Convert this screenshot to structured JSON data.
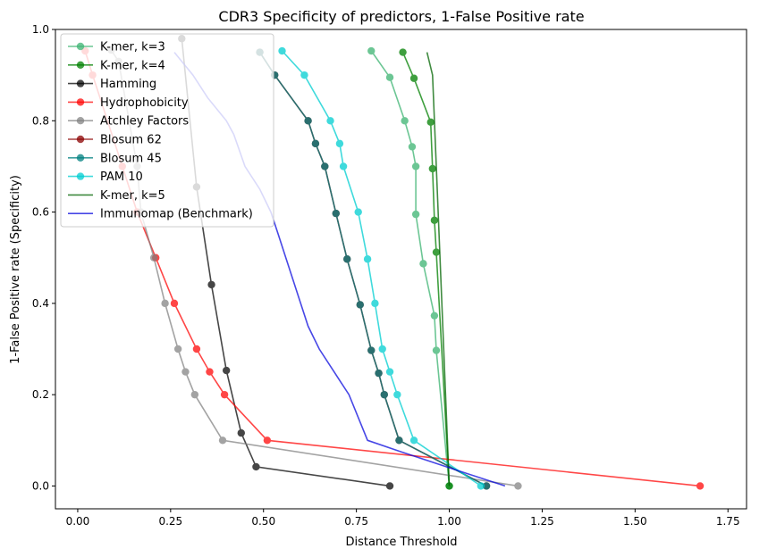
{
  "chart_data": {
    "type": "line",
    "title": "CDR3 Specificity of predictors, 1-False Positive rate",
    "xlabel": "Distance Threshold",
    "ylabel": "1-False Positive rate (Specificity)",
    "xlim": [
      -0.06,
      1.8
    ],
    "ylim": [
      -0.05,
      1.0
    ],
    "xticks": [
      0.0,
      0.25,
      0.5,
      0.75,
      1.0,
      1.25,
      1.5,
      1.75
    ],
    "xtick_labels": [
      "0.00",
      "0.25",
      "0.50",
      "0.75",
      "1.00",
      "1.25",
      "1.50",
      "1.75"
    ],
    "yticks": [
      0.0,
      0.2,
      0.4,
      0.6,
      0.8,
      1.0
    ],
    "ytick_labels": [
      "0.0",
      "0.2",
      "0.4",
      "0.6",
      "0.8",
      "1.0"
    ],
    "grid": false,
    "legend_position": "upper-left",
    "series": [
      {
        "name": "K-mer, k=3",
        "color": "#3cb371",
        "alpha": 0.75,
        "markers": true,
        "x": [
          0.79,
          0.84,
          0.88,
          0.9,
          0.91,
          0.91,
          0.93,
          0.96,
          0.965,
          1.0
        ],
        "y": [
          0.953,
          0.895,
          0.8,
          0.743,
          0.7,
          0.595,
          0.487,
          0.373,
          0.297,
          0.0
        ]
      },
      {
        "name": "K-mer, k=4",
        "color": "#008000",
        "alpha": 0.75,
        "markers": true,
        "x": [
          0.875,
          0.905,
          0.95,
          0.955,
          0.96,
          0.965,
          1.0
        ],
        "y": [
          0.95,
          0.893,
          0.797,
          0.695,
          0.582,
          0.512,
          0.0
        ]
      },
      {
        "name": "Hamming",
        "color": "#000000",
        "alpha": 0.72,
        "markers": true,
        "x": [
          0.28,
          0.32,
          0.36,
          0.4,
          0.44,
          0.48,
          0.84
        ],
        "y": [
          0.98,
          0.655,
          0.441,
          0.253,
          0.116,
          0.042,
          0.0
        ]
      },
      {
        "name": "Hydrophobicity",
        "color": "#ff0000",
        "alpha": 0.72,
        "markers": true,
        "x": [
          0.02,
          0.04,
          0.12,
          0.16,
          0.21,
          0.26,
          0.32,
          0.355,
          0.395,
          0.51,
          1.675
        ],
        "y": [
          0.953,
          0.9,
          0.7,
          0.6,
          0.5,
          0.4,
          0.3,
          0.25,
          0.2,
          0.1,
          0.0
        ]
      },
      {
        "name": "Atchley Factors",
        "color": "#808080",
        "alpha": 0.72,
        "markers": true,
        "x": [
          0.09,
          0.11,
          0.16,
          0.17,
          0.205,
          0.235,
          0.27,
          0.29,
          0.315,
          0.39,
          1.185
        ],
        "y": [
          0.955,
          0.93,
          0.7,
          0.6,
          0.5,
          0.4,
          0.3,
          0.25,
          0.2,
          0.1,
          0.0
        ]
      },
      {
        "name": "Blosum 62",
        "color": "#8b0000",
        "alpha": 0.75,
        "markers": true,
        "x": [
          0.49,
          0.53,
          0.62,
          0.64,
          0.665,
          0.695,
          0.725,
          0.76,
          0.79,
          0.81,
          0.825,
          0.865,
          1.1
        ],
        "y": [
          0.95,
          0.9,
          0.8,
          0.75,
          0.7,
          0.597,
          0.497,
          0.397,
          0.297,
          0.247,
          0.2,
          0.1,
          0.0
        ]
      },
      {
        "name": "Blosum 45",
        "color": "#008080",
        "alpha": 0.75,
        "markers": true,
        "x": [
          0.49,
          0.53,
          0.62,
          0.64,
          0.665,
          0.695,
          0.725,
          0.76,
          0.79,
          0.81,
          0.825,
          0.865,
          1.1
        ],
        "y": [
          0.95,
          0.9,
          0.8,
          0.75,
          0.7,
          0.597,
          0.497,
          0.397,
          0.297,
          0.247,
          0.2,
          0.1,
          0.0
        ]
      },
      {
        "name": "PAM 10",
        "color": "#00ced1",
        "alpha": 0.75,
        "markers": true,
        "x": [
          0.55,
          0.61,
          0.68,
          0.705,
          0.715,
          0.755,
          0.78,
          0.8,
          0.82,
          0.84,
          0.86,
          0.905,
          1.085
        ],
        "y": [
          0.953,
          0.9,
          0.8,
          0.75,
          0.7,
          0.6,
          0.497,
          0.4,
          0.3,
          0.25,
          0.2,
          0.1,
          0.0
        ]
      },
      {
        "name": "K-mer, k=5",
        "color": "#006400",
        "alpha": 0.75,
        "markers": false,
        "x": [
          0.94,
          0.955,
          0.96,
          0.965,
          1.0
        ],
        "y": [
          0.95,
          0.9,
          0.8,
          0.7,
          0.0
        ]
      },
      {
        "name": "Immunomap (Benchmark)",
        "color": "#0000dd",
        "alpha": 0.72,
        "markers": false,
        "x": [
          0.26,
          0.31,
          0.35,
          0.4,
          0.42,
          0.45,
          0.49,
          0.52,
          0.54,
          0.56,
          0.6,
          0.62,
          0.65,
          0.69,
          0.73,
          0.78,
          0.87,
          1.0,
          1.15
        ],
        "y": [
          0.95,
          0.9,
          0.85,
          0.8,
          0.77,
          0.7,
          0.65,
          0.6,
          0.55,
          0.5,
          0.4,
          0.35,
          0.3,
          0.25,
          0.2,
          0.1,
          0.075,
          0.04,
          0.0
        ]
      }
    ]
  }
}
